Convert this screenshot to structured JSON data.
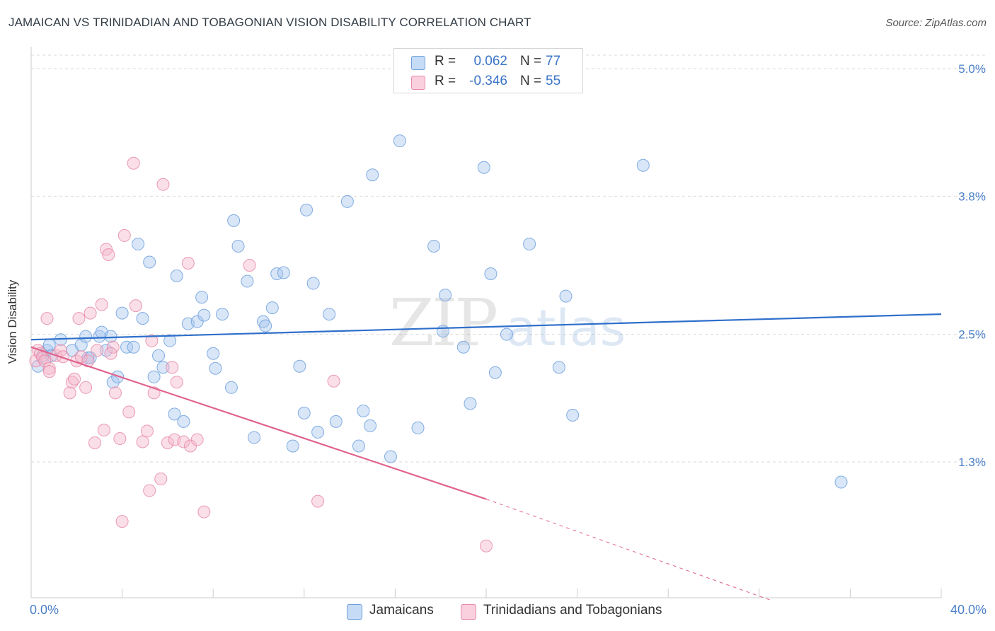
{
  "title": "JAMAICAN VS TRINIDADIAN AND TOBAGONIAN VISION DISABILITY CORRELATION CHART",
  "source": "Source: ZipAtlas.com",
  "watermark": {
    "zip": "ZIP",
    "atlas": "atlas"
  },
  "legend": {
    "rows": [
      {
        "r_label": "R =",
        "r_value": "0.062",
        "n_label": "N =",
        "n_value": "77",
        "color": "#a8c8f0"
      },
      {
        "r_label": "R =",
        "r_value": "-0.346",
        "n_label": "N =",
        "n_value": "55",
        "color": "#f5b8cc"
      }
    ]
  },
  "bottom_legend": {
    "series1": "Jamaicans",
    "series2": "Trinidadians and Tobagonians"
  },
  "x_axis": {
    "min_label": "0.0%",
    "max_label": "40.0%"
  },
  "chart_data": {
    "type": "scatter",
    "title": "JAMAICAN VS TRINIDADIAN AND TOBAGONIAN VISION DISABILITY CORRELATION CHART",
    "xlabel": "",
    "ylabel": "Vision Disability",
    "xlim": [
      0,
      40
    ],
    "ylim": [
      0,
      5.2
    ],
    "y_ticks": [
      {
        "value": 1.3,
        "label": "1.3%"
      },
      {
        "value": 2.5,
        "label": "2.5%"
      },
      {
        "value": 3.8,
        "label": "3.8%"
      },
      {
        "value": 5.0,
        "label": "5.0%"
      }
    ],
    "series": [
      {
        "name": "Jamaicans",
        "color": "#6fa0dc",
        "fill": "#a8c8f0",
        "trend": {
          "x0": 0,
          "y0": 2.45,
          "x1": 40,
          "y1": 2.69,
          "dashed_from": null
        },
        "points": [
          [
            0.3,
            2.2
          ],
          [
            0.5,
            2.3
          ],
          [
            0.7,
            2.35
          ],
          [
            0.8,
            2.4
          ],
          [
            0.9,
            2.3
          ],
          [
            1.3,
            2.45
          ],
          [
            1.8,
            2.35
          ],
          [
            2.2,
            2.4
          ],
          [
            2.4,
            2.48
          ],
          [
            2.5,
            2.28
          ],
          [
            2.6,
            2.28
          ],
          [
            3.0,
            2.48
          ],
          [
            3.1,
            2.52
          ],
          [
            3.3,
            2.35
          ],
          [
            3.5,
            2.48
          ],
          [
            3.6,
            2.05
          ],
          [
            3.8,
            2.1
          ],
          [
            4.0,
            2.7
          ],
          [
            4.2,
            2.38
          ],
          [
            4.5,
            2.38
          ],
          [
            4.7,
            3.35
          ],
          [
            4.9,
            2.65
          ],
          [
            5.2,
            3.18
          ],
          [
            5.4,
            2.1
          ],
          [
            5.6,
            2.3
          ],
          [
            5.8,
            2.19
          ],
          [
            6.1,
            2.44
          ],
          [
            6.3,
            1.75
          ],
          [
            6.4,
            3.05
          ],
          [
            6.7,
            1.68
          ],
          [
            6.9,
            2.6
          ],
          [
            7.3,
            2.62
          ],
          [
            7.5,
            2.85
          ],
          [
            7.6,
            2.68
          ],
          [
            8.0,
            2.32
          ],
          [
            8.1,
            2.18
          ],
          [
            8.4,
            2.69
          ],
          [
            8.8,
            2.0
          ],
          [
            8.9,
            3.57
          ],
          [
            9.1,
            3.33
          ],
          [
            9.5,
            3.0
          ],
          [
            9.8,
            1.53
          ],
          [
            10.2,
            2.62
          ],
          [
            10.3,
            2.58
          ],
          [
            10.6,
            2.75
          ],
          [
            10.8,
            3.07
          ],
          [
            11.1,
            3.08
          ],
          [
            11.5,
            1.45
          ],
          [
            11.8,
            2.2
          ],
          [
            12.0,
            1.76
          ],
          [
            12.1,
            3.67
          ],
          [
            12.4,
            2.98
          ],
          [
            12.6,
            1.58
          ],
          [
            13.1,
            2.69
          ],
          [
            13.4,
            1.68
          ],
          [
            13.9,
            3.75
          ],
          [
            14.4,
            1.45
          ],
          [
            14.6,
            1.78
          ],
          [
            14.9,
            1.64
          ],
          [
            15.0,
            4.0
          ],
          [
            15.8,
            1.35
          ],
          [
            16.2,
            4.32
          ],
          [
            17.0,
            1.62
          ],
          [
            17.7,
            3.33
          ],
          [
            18.1,
            2.53
          ],
          [
            18.2,
            2.87
          ],
          [
            19.0,
            2.38
          ],
          [
            19.3,
            1.85
          ],
          [
            19.9,
            4.07
          ],
          [
            20.2,
            3.07
          ],
          [
            20.4,
            2.14
          ],
          [
            20.9,
            2.5
          ],
          [
            21.9,
            3.35
          ],
          [
            23.2,
            2.19
          ],
          [
            23.5,
            2.86
          ],
          [
            23.8,
            1.74
          ],
          [
            26.9,
            4.09
          ],
          [
            35.6,
            1.11
          ]
        ]
      },
      {
        "name": "Trinidadians and Tobagonians",
        "color": "#e88aa8",
        "fill": "#f5b8cc",
        "trend": {
          "x0": 0,
          "y0": 2.38,
          "x1": 20,
          "y1": 0.95,
          "dashed_to_x": 32.5,
          "dashed_to_y": 0.0
        },
        "points": [
          [
            0.2,
            2.25
          ],
          [
            0.3,
            2.35
          ],
          [
            0.4,
            2.32
          ],
          [
            0.5,
            2.28
          ],
          [
            0.6,
            2.25
          ],
          [
            0.7,
            2.65
          ],
          [
            0.8,
            2.18
          ],
          [
            0.8,
            2.15
          ],
          [
            1.1,
            2.3
          ],
          [
            1.3,
            2.35
          ],
          [
            1.4,
            2.29
          ],
          [
            1.7,
            1.95
          ],
          [
            1.8,
            2.05
          ],
          [
            1.9,
            2.08
          ],
          [
            2.0,
            2.25
          ],
          [
            2.1,
            2.65
          ],
          [
            2.2,
            2.29
          ],
          [
            2.4,
            2.0
          ],
          [
            2.5,
            2.25
          ],
          [
            2.6,
            2.7
          ],
          [
            2.8,
            1.48
          ],
          [
            2.9,
            2.35
          ],
          [
            3.1,
            2.78
          ],
          [
            3.2,
            1.6
          ],
          [
            3.3,
            3.3
          ],
          [
            3.4,
            3.25
          ],
          [
            3.6,
            2.38
          ],
          [
            3.7,
            1.95
          ],
          [
            3.9,
            1.52
          ],
          [
            4.0,
            0.74
          ],
          [
            4.1,
            3.43
          ],
          [
            4.3,
            1.77
          ],
          [
            4.5,
            4.11
          ],
          [
            4.6,
            2.77
          ],
          [
            4.9,
            1.49
          ],
          [
            5.1,
            1.59
          ],
          [
            5.2,
            1.03
          ],
          [
            5.3,
            2.44
          ],
          [
            5.4,
            1.95
          ],
          [
            5.7,
            1.14
          ],
          [
            5.8,
            3.91
          ],
          [
            6.0,
            1.48
          ],
          [
            6.2,
            2.19
          ],
          [
            6.3,
            1.51
          ],
          [
            6.4,
            2.05
          ],
          [
            6.7,
            1.49
          ],
          [
            6.9,
            3.17
          ],
          [
            7.0,
            1.45
          ],
          [
            7.3,
            1.51
          ],
          [
            7.6,
            0.83
          ],
          [
            9.6,
            3.15
          ],
          [
            12.6,
            0.93
          ],
          [
            13.3,
            2.06
          ],
          [
            20.0,
            0.51
          ],
          [
            3.5,
            2.32
          ]
        ]
      }
    ]
  }
}
